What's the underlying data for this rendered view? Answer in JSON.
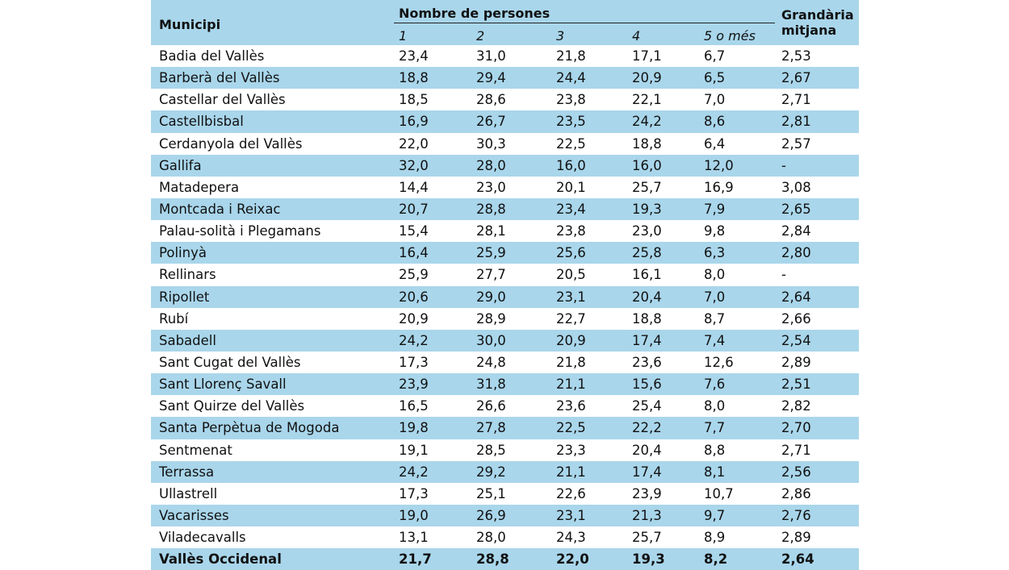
{
  "header": {
    "municipi": "Municipi",
    "nombre": "Nombre de persones",
    "sub": [
      "1",
      "2",
      "3",
      "4",
      "5 o més"
    ],
    "size_line1": "Grandària",
    "size_line2": "mitjana"
  },
  "rows": [
    [
      "Badia del Vallès",
      "23,4",
      "31,0",
      "21,8",
      "17,1",
      "6,7",
      "2,53"
    ],
    [
      "Barberà del Vallès",
      "18,8",
      "29,4",
      "24,4",
      "20,9",
      "6,5",
      "2,67"
    ],
    [
      "Castellar del Vallès",
      "18,5",
      "28,6",
      "23,8",
      "22,1",
      "7,0",
      "2,71"
    ],
    [
      "Castellbisbal",
      "16,9",
      "26,7",
      "23,5",
      "24,2",
      "8,6",
      "2,81"
    ],
    [
      "Cerdanyola del Vallès",
      "22,0",
      "30,3",
      "22,5",
      "18,8",
      "6,4",
      "2,57"
    ],
    [
      "Gallifa",
      "32,0",
      "28,0",
      "16,0",
      "16,0",
      "12,0",
      "-"
    ],
    [
      "Matadepera",
      "14,4",
      "23,0",
      "20,1",
      "25,7",
      "16,9",
      "3,08"
    ],
    [
      "Montcada i Reixac",
      "20,7",
      "28,8",
      "23,4",
      "19,3",
      "7,9",
      "2,65"
    ],
    [
      "Palau-solità i Plegamans",
      "15,4",
      "28,1",
      "23,8",
      "23,0",
      "9,8",
      "2,84"
    ],
    [
      "Polinyà",
      "16,4",
      "25,9",
      "25,6",
      "25,8",
      "6,3",
      "2,80"
    ],
    [
      "Rellinars",
      "25,9",
      "27,7",
      "20,5",
      "16,1",
      "8,0",
      "-"
    ],
    [
      "Ripollet",
      "20,6",
      "29,0",
      "23,1",
      "20,4",
      "7,0",
      "2,64"
    ],
    [
      "Rubí",
      "20,9",
      "28,9",
      "22,7",
      "18,8",
      "8,7",
      "2,66"
    ],
    [
      "Sabadell",
      "24,2",
      "30,0",
      "20,9",
      "17,4",
      "7,4",
      "2,54"
    ],
    [
      "Sant Cugat del Vallès",
      "17,3",
      "24,8",
      "21,8",
      "23,6",
      "12,6",
      "2,89"
    ],
    [
      "Sant Llorenç Savall",
      "23,9",
      "31,8",
      "21,1",
      "15,6",
      "7,6",
      "2,51"
    ],
    [
      "Sant Quirze del Vallès",
      "16,5",
      "26,6",
      "23,6",
      "25,4",
      "8,0",
      "2,82"
    ],
    [
      "Santa Perpètua de Mogoda",
      "19,8",
      "27,8",
      "22,5",
      "22,2",
      "7,7",
      "2,70"
    ],
    [
      "Sentmenat",
      "19,1",
      "28,5",
      "23,3",
      "20,4",
      "8,8",
      "2,71"
    ],
    [
      "Terrassa",
      "24,2",
      "29,2",
      "21,1",
      "17,4",
      "8,1",
      "2,56"
    ],
    [
      "Ullastrell",
      "17,3",
      "25,1",
      "22,6",
      "23,9",
      "10,7",
      "2,86"
    ],
    [
      "Vacarisses",
      "19,0",
      "26,9",
      "23,1",
      "21,3",
      "9,7",
      "2,76"
    ],
    [
      "Viladecavalls",
      "13,1",
      "28,0",
      "24,3",
      "25,7",
      "8,9",
      "2,89"
    ]
  ],
  "total": [
    "Vallès Occidenal",
    "21,7",
    "28,8",
    "22,0",
    "19,3",
    "8,2",
    "2,64"
  ],
  "colors": {
    "band": "#a9d6eb"
  }
}
